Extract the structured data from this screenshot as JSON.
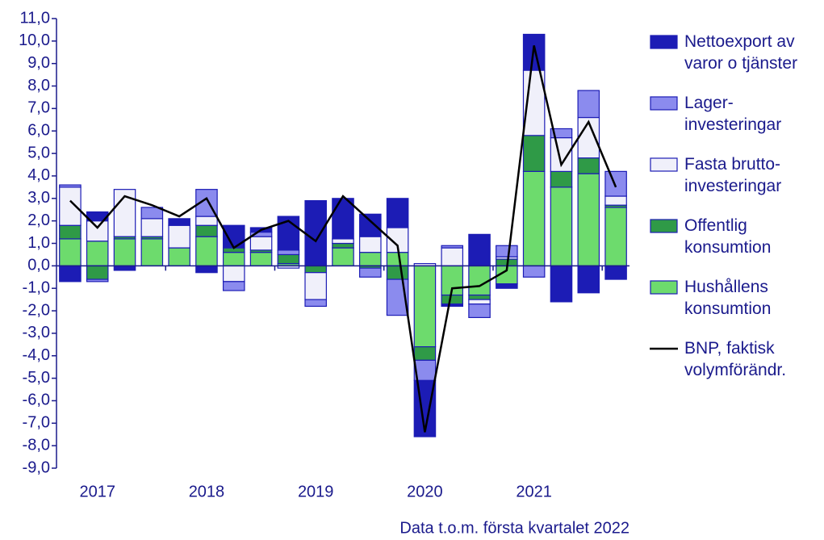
{
  "chart_data": {
    "type": "bar",
    "categories": [
      null,
      "2017",
      null,
      null,
      null,
      "2018",
      null,
      null,
      null,
      "2019",
      null,
      null,
      null,
      "2020",
      null,
      null,
      null,
      "2021",
      null,
      null,
      null
    ],
    "series": [
      {
        "name": "Hushållens\nkonsumtion",
        "color": "#6ddb6d",
        "values": [
          1.2,
          1.1,
          1.2,
          1.2,
          0.8,
          1.3,
          0.6,
          0.6,
          0.1,
          0.0,
          0.8,
          0.6,
          0.6,
          -3.6,
          -1.3,
          -1.3,
          -0.8,
          4.2,
          3.5,
          4.1,
          2.6
        ]
      },
      {
        "name": "Offentlig\nkonsumtion",
        "color": "#2f9a47",
        "values": [
          0.6,
          -0.6,
          0.1,
          0.1,
          0.0,
          0.5,
          0.2,
          0.1,
          0.4,
          -0.3,
          0.2,
          -0.1,
          -0.6,
          -0.6,
          -0.4,
          -0.2,
          0.3,
          1.6,
          0.7,
          0.7,
          0.1
        ]
      },
      {
        "name": "Fasta brutto-\ninvesteringar",
        "color": "#f0f0fa",
        "values": [
          1.7,
          0.9,
          2.1,
          0.8,
          1.0,
          0.4,
          -0.7,
          0.6,
          -0.1,
          -1.2,
          0.2,
          0.7,
          1.1,
          0.1,
          0.8,
          -0.2,
          0.1,
          2.9,
          1.5,
          1.8,
          0.4
        ]
      },
      {
        "name": "Lager-\ninvesteringar",
        "color": "#8b8bee",
        "values": [
          0.1,
          -0.1,
          0.0,
          0.5,
          0.0,
          1.2,
          -0.4,
          0.2,
          0.2,
          -0.3,
          0.0,
          -0.4,
          -1.6,
          -0.9,
          0.1,
          -0.6,
          0.5,
          -0.5,
          0.4,
          1.2,
          1.1
        ]
      },
      {
        "name": "Nettoexport av\nvaror o tjänster",
        "color": "#1c1cb5",
        "values": [
          -0.7,
          0.4,
          -0.2,
          0.0,
          0.3,
          -0.3,
          1.0,
          0.2,
          1.5,
          2.9,
          1.8,
          1.0,
          1.3,
          -2.5,
          -0.1,
          1.4,
          -0.2,
          1.6,
          -1.6,
          -1.2,
          -0.6
        ]
      },
      {
        "name": "BNP, faktisk\nvolymförändr.",
        "color": "#000000",
        "type": "line",
        "values": [
          2.9,
          1.7,
          3.1,
          2.7,
          2.2,
          3.0,
          0.8,
          1.6,
          2.0,
          1.1,
          3.1,
          2.0,
          0.9,
          -7.4,
          -1.0,
          -0.9,
          -0.2,
          9.8,
          4.5,
          6.4,
          3.5
        ]
      }
    ],
    "ylim": [
      -9,
      11
    ],
    "yticks": [
      {
        "value": -9,
        "label": "-9,0"
      },
      {
        "value": -8,
        "label": "-8,0"
      },
      {
        "value": -7,
        "label": "-7,0"
      },
      {
        "value": -6,
        "label": "-6,0"
      },
      {
        "value": -5,
        "label": "-5,0"
      },
      {
        "value": -4,
        "label": "-4,0"
      },
      {
        "value": -3,
        "label": "-3,0"
      },
      {
        "value": -2,
        "label": "-2,0"
      },
      {
        "value": -1,
        "label": "-1,0"
      },
      {
        "value": 0,
        "label": "0,0"
      },
      {
        "value": 1,
        "label": "1,0"
      },
      {
        "value": 2,
        "label": "2,0"
      },
      {
        "value": 3,
        "label": "3,0"
      },
      {
        "value": 4,
        "label": "4,0"
      },
      {
        "value": 5,
        "label": "5,0"
      },
      {
        "value": 6,
        "label": "6,0"
      },
      {
        "value": 7,
        "label": "7,0"
      },
      {
        "value": 8,
        "label": "8,0"
      },
      {
        "value": 9,
        "label": "9,0"
      },
      {
        "value": 10,
        "label": "10,0"
      },
      {
        "value": 11,
        "label": "11,0"
      }
    ],
    "note": "Data t.o.m. första kvartalet 2022",
    "legend": "right"
  }
}
